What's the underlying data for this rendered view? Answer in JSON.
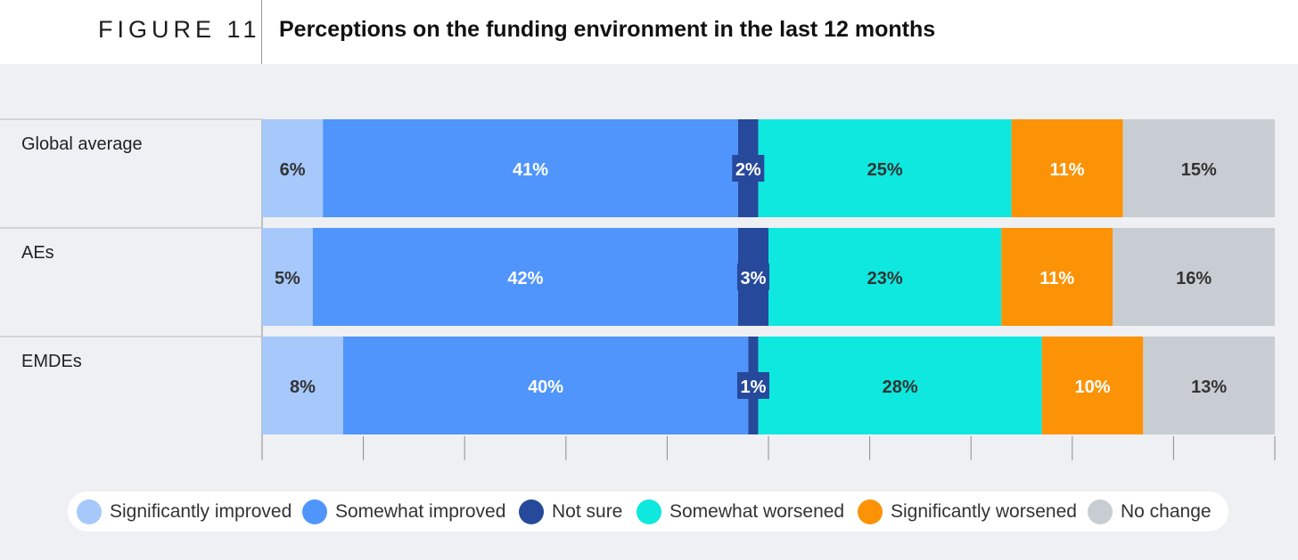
{
  "figure": {
    "label": "FIGURE 11",
    "title": "Perceptions on the funding environment in the last 12 months"
  },
  "chart_data": {
    "type": "bar",
    "orientation": "horizontal",
    "stacked": true,
    "title": "Perceptions on the funding environment in the last 12 months",
    "categories": [
      "Global average",
      "AEs",
      "EMDEs"
    ],
    "series": [
      {
        "name": "Significantly improved",
        "color": "#a6c8fb",
        "label_color": "#333333",
        "values": [
          6,
          5,
          8
        ]
      },
      {
        "name": "Somewhat improved",
        "color": "#5095fb",
        "label_color": "#ffffff",
        "values": [
          41,
          42,
          40
        ]
      },
      {
        "name": "Not sure",
        "color": "#26499b",
        "label_color": "#ffffff",
        "values": [
          2,
          3,
          1
        ]
      },
      {
        "name": "Somewhat worsened",
        "color": "#0ee8de",
        "label_color": "#333333",
        "values": [
          25,
          23,
          28
        ]
      },
      {
        "name": "Significantly worsened",
        "color": "#fc9307",
        "label_color": "#ffffff",
        "values": [
          11,
          11,
          10
        ]
      },
      {
        "name": "No change",
        "color": "#c7cdd3",
        "label_color": "#333333",
        "values": [
          15,
          16,
          13
        ]
      }
    ],
    "xlim": [
      0,
      100
    ],
    "legend_position": "bottom"
  }
}
